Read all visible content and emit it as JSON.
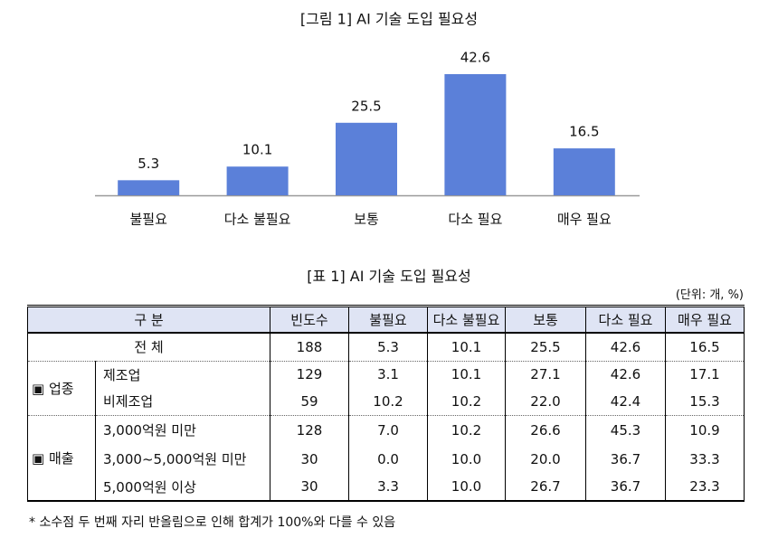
{
  "chart_data": {
    "type": "bar",
    "title": "[그림 1] AI 기술 도입 필요성",
    "categories": [
      "불필요",
      "다소 불필요",
      "보통",
      "다소 필요",
      "매우 필요"
    ],
    "values": [
      5.3,
      10.1,
      25.5,
      42.6,
      16.5
    ],
    "color": "#5b80d9"
  },
  "table": {
    "title": "[표 1] AI 기술 도입 필요성",
    "unit": "(단위: 개, %)",
    "header": [
      "구  분",
      "빈도수",
      "불필요",
      "다소 불필요",
      "보통",
      "다소 필요",
      "매우 필요"
    ],
    "total": {
      "label": "전  체",
      "cells": [
        "188",
        "5.3",
        "10.1",
        "25.5",
        "42.6",
        "16.5"
      ]
    },
    "groups": [
      {
        "label": "▣ 업종",
        "rows": [
          {
            "label": "제조업",
            "cells": [
              "129",
              "3.1",
              "10.1",
              "27.1",
              "42.6",
              "17.1"
            ]
          },
          {
            "label": "비제조업",
            "cells": [
              "59",
              "10.2",
              "10.2",
              "22.0",
              "42.4",
              "15.3"
            ]
          }
        ]
      },
      {
        "label": "▣ 매출",
        "rows": [
          {
            "label": "3,000억원 미만",
            "cells": [
              "128",
              "7.0",
              "10.2",
              "26.6",
              "45.3",
              "10.9"
            ]
          },
          {
            "label": "3,000~5,000억원 미만",
            "cells": [
              "30",
              "0.0",
              "10.0",
              "20.0",
              "36.7",
              "33.3"
            ]
          },
          {
            "label": "5,000억원 이상",
            "cells": [
              "30",
              "3.3",
              "10.0",
              "26.7",
              "36.7",
              "23.3"
            ]
          }
        ]
      }
    ]
  },
  "note": "* 소수점 두 번째 자리 반올림으로 인해 합계가 100%와 다를 수 있음"
}
